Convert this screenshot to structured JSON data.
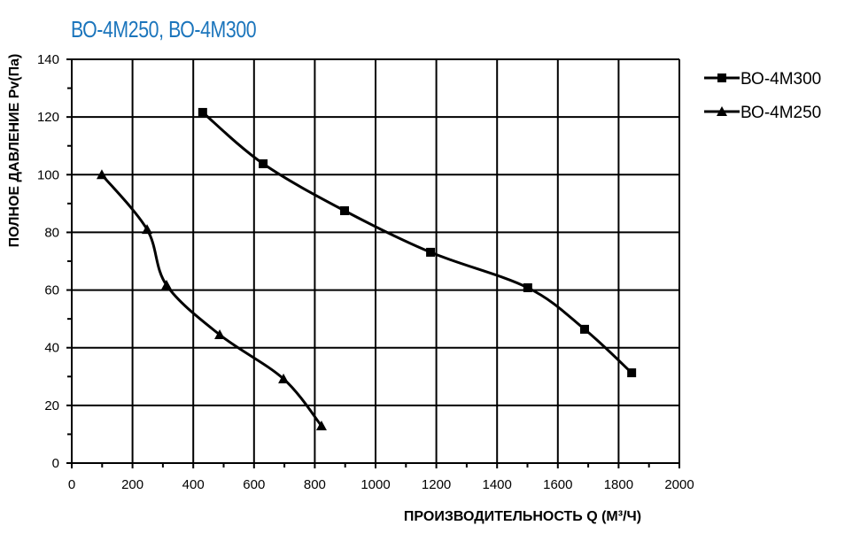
{
  "title": "ВО-4М250, ВО-4М300",
  "chart_data": {
    "type": "line",
    "title": "ВО-4М250, ВО-4М300",
    "xlabel": "ПРОИЗВОДИТЕЛЬНОСТЬ    Q  (М³/Ч)",
    "ylabel": "ПОЛНОЕ ДАВЛЕНИЕ   Pv(Па)",
    "xlim": [
      0,
      2000
    ],
    "ylim": [
      0,
      140
    ],
    "xticks": [
      0,
      200,
      400,
      600,
      800,
      1000,
      1200,
      1400,
      1600,
      1800,
      2000
    ],
    "yticks": [
      0,
      20,
      40,
      60,
      80,
      100,
      120,
      140
    ],
    "grid": true,
    "legend_position": "right",
    "series": [
      {
        "name": "ВО-4М300",
        "marker": "square",
        "color": "#000000",
        "x": [
          431,
          630,
          898,
          1181,
          1501,
          1688,
          1843
        ],
        "y": [
          121.6,
          103.8,
          87.5,
          73.1,
          60.8,
          46.4,
          31.3
        ]
      },
      {
        "name": "ВО-4М250",
        "marker": "triangle",
        "color": "#000000",
        "x": [
          99,
          248,
          312,
          487,
          697,
          822
        ],
        "y": [
          100,
          81,
          61.7,
          44.5,
          29.2,
          12.9
        ]
      }
    ]
  }
}
